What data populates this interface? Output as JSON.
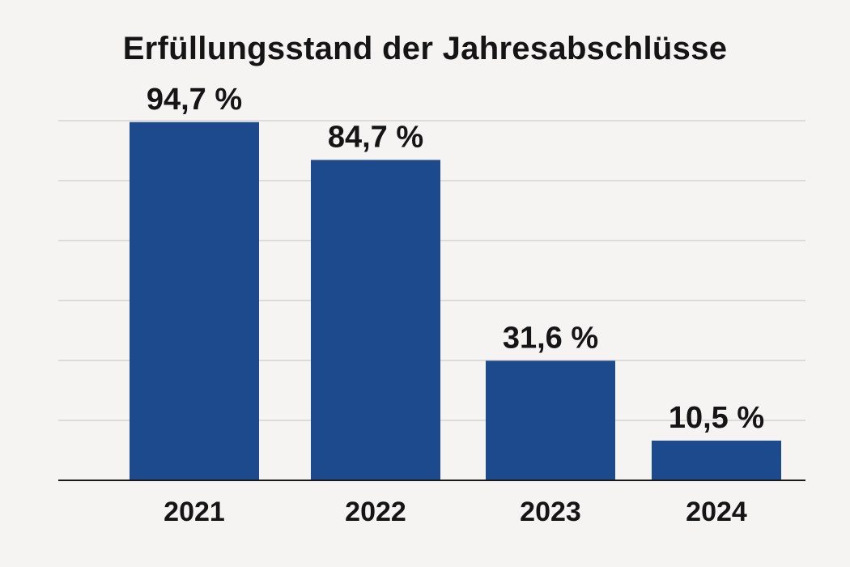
{
  "chart_data": {
    "type": "bar",
    "title": "Erfüllungsstand der Jahresabschlüsse",
    "xlabel": "",
    "ylabel": "",
    "categories": [
      "2021",
      "2022",
      "2023",
      "2024"
    ],
    "values": [
      94.7,
      84.7,
      31.6,
      10.5
    ],
    "value_labels": [
      "94,7 %",
      "84,7 %",
      "31,6 %",
      "10,5 %"
    ],
    "ylim": [
      0,
      100
    ],
    "grid": true,
    "legend": "none",
    "colors": {
      "bar": "#1d4a8c",
      "background": "#f6f3f3",
      "grid": "#c4c2c2"
    }
  }
}
